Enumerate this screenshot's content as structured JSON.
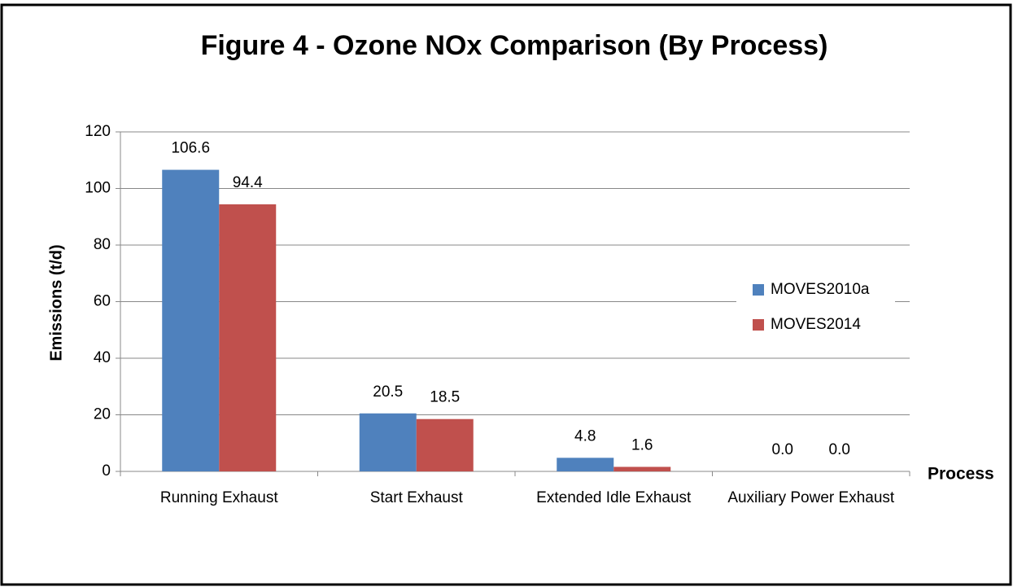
{
  "chart_data": {
    "type": "bar",
    "title": "Figure 4 - Ozone NOx Comparison (By Process)",
    "y_label": "Emissions (t/d)",
    "x_label": "Process",
    "categories": [
      "Running Exhaust",
      "Start Exhaust",
      "Extended Idle Exhaust",
      "Auxiliary Power Exhaust"
    ],
    "series": [
      {
        "name": "MOVES2010a",
        "color": "#4f81bd",
        "values": [
          106.6,
          20.5,
          4.8,
          0
        ],
        "value_labels": [
          "106.6",
          "20.5",
          "4.8",
          "0.0"
        ]
      },
      {
        "name": "MOVES2014",
        "color": "#c0504d",
        "values": [
          94.4,
          18.5,
          1.6,
          0
        ],
        "value_labels": [
          "94.4",
          "18.5",
          "1.6",
          "0.0"
        ]
      }
    ],
    "ylim": [
      0,
      120
    ],
    "yticks": [
      0,
      20,
      40,
      60,
      80,
      100,
      120
    ],
    "grid": true,
    "legend": "right"
  }
}
